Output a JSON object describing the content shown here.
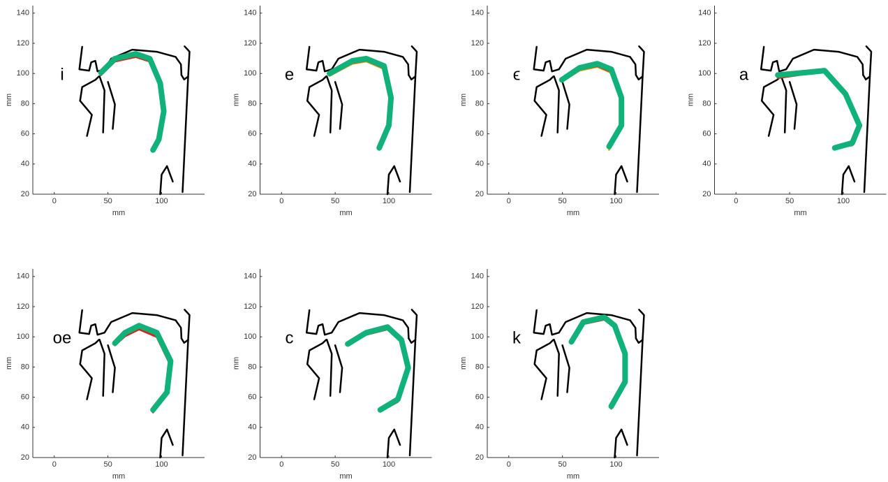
{
  "chart_data": [
    {
      "type": "line",
      "label": "i",
      "xlabel": "mm",
      "ylabel": "mm",
      "xlim": [
        -20,
        140
      ],
      "ylim": [
        20,
        145
      ],
      "xticks": [
        0,
        50,
        100
      ],
      "yticks": [
        20,
        40,
        60,
        80,
        100,
        120,
        140
      ],
      "series": [
        {
          "color": "#e8a317",
          "x": [
            43.5,
            56.5,
            76,
            89,
            98.7,
            102,
            97.4,
            92
          ],
          "y": [
            99.5,
            108.5,
            111.5,
            108.5,
            92.5,
            74,
            55.5,
            48.3
          ]
        },
        {
          "color": "#d7261e",
          "x": [
            43.5,
            56.5,
            76,
            89,
            98.7,
            102,
            97.4,
            92
          ],
          "y": [
            99,
            108,
            111,
            108,
            92,
            73.5,
            55,
            49
          ]
        },
        {
          "color": "#10b27a",
          "x": [
            43.5,
            56.5,
            76,
            89,
            98.7,
            102,
            97.4,
            92
          ],
          "y": [
            100.5,
            109.8,
            113,
            109.8,
            93.5,
            74.9,
            56.3,
            49.3
          ]
        }
      ]
    },
    {
      "type": "line",
      "label": "e",
      "xlabel": "mm",
      "ylabel": "mm",
      "xlim": [
        -20,
        140
      ],
      "ylim": [
        20,
        145
      ],
      "xticks": [
        0,
        50,
        100
      ],
      "yticks": [
        20,
        40,
        60,
        80,
        100,
        120,
        140
      ],
      "series": [
        {
          "color": "#e8a317",
          "x": [
            44.8,
            66,
            79,
            95.5,
            102,
            100,
            91
          ],
          "y": [
            98.5,
            106.5,
            108,
            103,
            82.5,
            64.5,
            49.5
          ]
        },
        {
          "color": "#d7261e",
          "x": [
            44.8,
            66,
            79,
            95.5,
            102,
            100,
            91
          ],
          "y": [
            99,
            107,
            108.5,
            103.5,
            83,
            64.5,
            50
          ]
        },
        {
          "color": "#10b27a",
          "x": [
            44.8,
            66,
            79,
            95.5,
            102,
            100,
            91
          ],
          "y": [
            100,
            108.4,
            109.8,
            105,
            84,
            65.6,
            50.7
          ]
        }
      ]
    },
    {
      "type": "line",
      "label": "ϵ",
      "xlabel": "mm",
      "ylabel": "mm",
      "xlim": [
        -20,
        140
      ],
      "ylim": [
        20,
        145
      ],
      "xticks": [
        0,
        50,
        100
      ],
      "yticks": [
        20,
        40,
        60,
        80,
        100,
        120,
        140
      ],
      "series": [
        {
          "color": "#e8a317",
          "x": [
            49.4,
            66,
            82.5,
            95.5,
            105,
            105,
            93.5
          ],
          "y": [
            94.5,
            102,
            104.5,
            100.5,
            82,
            64,
            49.5
          ]
        },
        {
          "color": "#d7261e",
          "x": [
            49.4,
            66,
            82.5,
            95.5,
            105,
            105,
            93.5
          ],
          "y": [
            95,
            102.5,
            105,
            101,
            81.5,
            63.5,
            50.5
          ]
        },
        {
          "color": "#10b27a",
          "x": [
            49.4,
            66,
            82.5,
            95.5,
            105,
            105,
            93.5
          ],
          "y": [
            95.8,
            103.7,
            106.5,
            102.8,
            84,
            65.6,
            51.6
          ]
        }
      ]
    },
    {
      "type": "line",
      "label": "a",
      "xlabel": "mm",
      "ylabel": "mm",
      "xlim": [
        -20,
        140
      ],
      "ylim": [
        20,
        145
      ],
      "xticks": [
        0,
        50,
        100
      ],
      "yticks": [
        20,
        40,
        60,
        80,
        100,
        120,
        140
      ],
      "series": [
        {
          "color": "#e8a317",
          "x": [
            39,
            63,
            82.5,
            102,
            115,
            108.4,
            92
          ],
          "y": [
            97.5,
            100,
            101.5,
            85.5,
            64.5,
            53,
            50
          ]
        },
        {
          "color": "#d7261e",
          "x": [
            39,
            63,
            82.5,
            102,
            115,
            108.4,
            92
          ],
          "y": [
            97,
            99.5,
            101,
            85,
            64,
            52.5,
            50.2
          ]
        },
        {
          "color": "#10b27a",
          "x": [
            39,
            63,
            82.5,
            102,
            115,
            108.4,
            92
          ],
          "y": [
            99,
            100.5,
            101.9,
            86.5,
            65.6,
            54,
            50.7
          ]
        }
      ]
    },
    {
      "type": "line",
      "label": "oe",
      "xlabel": "mm",
      "ylabel": "mm",
      "xlim": [
        -20,
        140
      ],
      "ylim": [
        20,
        145
      ],
      "xticks": [
        0,
        50,
        100
      ],
      "yticks": [
        20,
        40,
        60,
        80,
        100,
        120,
        140
      ],
      "series": [
        {
          "color": "#e8a317",
          "x": [
            56.5,
            66,
            79,
            95.5,
            108.4,
            105,
            92
          ],
          "y": [
            95,
            101.5,
            106,
            101.5,
            83,
            62.5,
            50.5
          ]
        },
        {
          "color": "#d7261e",
          "x": [
            56.5,
            66,
            79,
            95.5,
            108.4,
            105,
            92
          ],
          "y": [
            94.5,
            100.5,
            105,
            100,
            81,
            61.5,
            50
          ]
        },
        {
          "color": "#10b27a",
          "x": [
            56.5,
            66,
            79,
            95.5,
            108.4,
            105,
            92
          ],
          "y": [
            95.8,
            102.8,
            107.4,
            102.8,
            84,
            63.3,
            51.6
          ]
        }
      ]
    },
    {
      "type": "line",
      "label": "c",
      "xlabel": "mm",
      "ylabel": "mm",
      "xlim": [
        -20,
        140
      ],
      "ylim": [
        20,
        145
      ],
      "xticks": [
        0,
        50,
        100
      ],
      "yticks": [
        20,
        40,
        60,
        80,
        100,
        120,
        140
      ],
      "series": [
        {
          "color": "#e8a317",
          "x": [
            61.7,
            79,
            98.7,
            111.7,
            118,
            108.4,
            92
          ],
          "y": [
            94.5,
            102,
            105.5,
            97,
            78.5,
            57.5,
            50.5
          ]
        },
        {
          "color": "#d7261e",
          "x": [
            61.7,
            79,
            98.7,
            111.7,
            118,
            108.4,
            92
          ],
          "y": [
            94.5,
            101.5,
            105,
            96.5,
            78,
            57,
            50.5
          ]
        },
        {
          "color": "#10b27a",
          "x": [
            61.7,
            79,
            98.7,
            111.7,
            118,
            108.4,
            92
          ],
          "y": [
            95.3,
            102.8,
            106.5,
            98,
            79.5,
            58.6,
            51.6
          ]
        }
      ]
    },
    {
      "type": "line",
      "label": "k",
      "xlabel": "mm",
      "ylabel": "mm",
      "xlim": [
        -20,
        140
      ],
      "ylim": [
        20,
        145
      ],
      "xticks": [
        0,
        50,
        100
      ],
      "yticks": [
        20,
        40,
        60,
        80,
        100,
        120,
        140
      ],
      "series": [
        {
          "color": "#e8a317",
          "x": [
            58.4,
            69.5,
            89,
            98.7,
            108.4,
            108.4,
            95.5
          ],
          "y": [
            96,
            109,
            112,
            106.5,
            87.5,
            69,
            53
          ]
        },
        {
          "color": "#d7261e",
          "x": [
            58.4,
            69.5,
            89,
            98.7,
            108.4,
            108.4,
            95.5
          ],
          "y": [
            95.5,
            108.5,
            111.5,
            106,
            86.5,
            68.5,
            52.5
          ]
        },
        {
          "color": "#10b27a",
          "x": [
            58.4,
            69.5,
            89,
            98.7,
            108.4,
            108.4,
            95.5
          ],
          "y": [
            96.7,
            109.8,
            113,
            107.4,
            88.8,
            70.2,
            54
          ]
        }
      ]
    }
  ],
  "outline": [
    {
      "x": [
        26,
        23.4,
        32.5,
        34.4,
        38.3,
        40.3,
        46.8,
        53,
        72.7,
        95.5,
        113,
        118,
        118.5
      ],
      "y": [
        117.7,
        102.8,
        101.9,
        107.4,
        108.4,
        101.4,
        102.8,
        109.8,
        115.8,
        114.4,
        111,
        106,
        99
      ]
    },
    {
      "x": [
        121.4,
        124,
        126,
        124.7,
        119.5
      ],
      "y": [
        118,
        116,
        114.4,
        98,
        21.4
      ]
    },
    {
      "x": [
        118.5,
        121,
        124.7
      ],
      "y": [
        99,
        96,
        98
      ]
    },
    {
      "x": [
        42.2,
        46.8,
        45.5
      ],
      "y": [
        98.1,
        88.8,
        60.9
      ]
    },
    {
      "x": [
        50,
        56.5,
        54.5
      ],
      "y": [
        94.4,
        79.5,
        63.3
      ]
    },
    {
      "x": [
        41.5,
        38.3,
        26,
        24,
        35,
        30.5
      ],
      "y": [
        98,
        95.8,
        91,
        81.9,
        72.6,
        58.6
      ]
    },
    {
      "x": [
        98.7,
        100,
        105,
        110.4
      ],
      "y": [
        20,
        33,
        38.6,
        28.4
      ]
    }
  ]
}
